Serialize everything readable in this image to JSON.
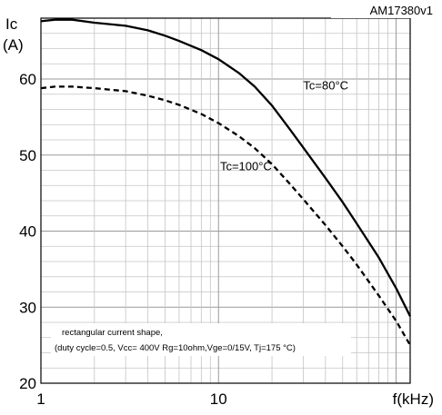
{
  "figure_id": "AM17380v1",
  "chart_data": {
    "type": "line",
    "title": "",
    "ylabel_lines": [
      "Ic",
      "(A)"
    ],
    "xlabel": "f(kHz)",
    "x_scale": "log",
    "xlim": [
      1,
      120
    ],
    "ylim": [
      20,
      68
    ],
    "grid": true,
    "x_ticks": [
      1,
      10
    ],
    "x_tick_labels": [
      "1",
      "10"
    ],
    "y_ticks": [
      20,
      30,
      40,
      50,
      60
    ],
    "y_tick_labels": [
      "20",
      "30",
      "40",
      "50",
      "60"
    ],
    "note_lines": [
      "rectangular current shape,",
      "(duty cycle=0.5, Vcc= 400V Rg=10ohm,Vge=0/15V, Tj=175 °C)"
    ],
    "series": [
      {
        "name": "Tc=80°C",
        "style": "solid",
        "color": "#000000",
        "x": [
          1,
          1.2,
          1.5,
          2,
          3,
          4,
          5,
          6,
          8,
          10,
          13,
          16,
          20,
          25,
          30,
          40,
          50,
          60,
          80,
          100,
          120
        ],
        "y": [
          67.6,
          67.8,
          67.8,
          67.4,
          67.0,
          66.4,
          65.7,
          65.0,
          63.8,
          62.6,
          60.8,
          59.0,
          56.5,
          53.5,
          51.0,
          47.0,
          43.8,
          41.0,
          36.5,
          32.5,
          28.8
        ]
      },
      {
        "name": "Tc=100°C",
        "style": "dashed",
        "color": "#000000",
        "x": [
          1,
          1.2,
          1.5,
          2,
          3,
          4,
          5,
          6,
          8,
          10,
          13,
          16,
          20,
          25,
          30,
          40,
          50,
          60,
          80,
          100,
          120
        ],
        "y": [
          58.8,
          59.0,
          59.0,
          58.8,
          58.4,
          57.8,
          57.2,
          56.6,
          55.4,
          54.2,
          52.5,
          50.9,
          48.8,
          46.3,
          44.2,
          40.8,
          38.0,
          35.6,
          31.5,
          28.2,
          25.0
        ]
      }
    ],
    "series_labels": [
      {
        "text": "Tc=80°C",
        "x": 30,
        "y": 58.6
      },
      {
        "text": "Tc=100°C",
        "x": 10.2,
        "y": 48.0
      }
    ]
  }
}
